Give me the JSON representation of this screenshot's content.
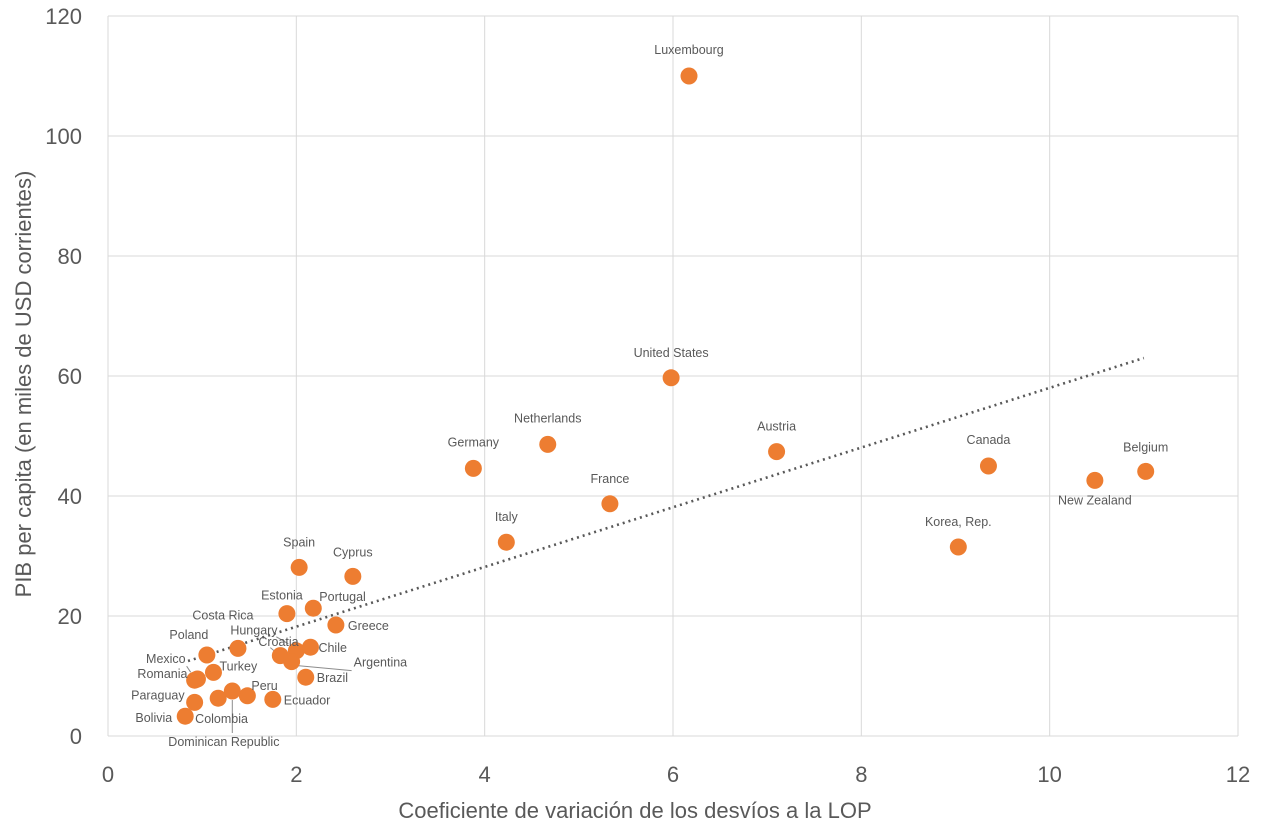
{
  "chart_data": {
    "type": "scatter",
    "title": "",
    "xlabel": "Coeficiente de variación de los desvíos a la LOP",
    "ylabel": "PIB per capita (en miles de USD corrientes)",
    "xlim": [
      0,
      12
    ],
    "ylim": [
      0,
      120
    ],
    "x_ticks": [
      0,
      2,
      4,
      6,
      8,
      10,
      12
    ],
    "y_ticks": [
      0,
      20,
      40,
      60,
      80,
      100,
      120
    ],
    "grid": true,
    "legend": "none",
    "colors": {
      "points": "#ed7d31",
      "trendline": "#595959",
      "grid": "#d9d9d9",
      "text": "#595959"
    },
    "trendline": {
      "style": "dotted linear",
      "x": [
        0.85,
        11.0
      ],
      "y": [
        12.5,
        63.0
      ]
    },
    "points": [
      {
        "label": "Luxembourg",
        "x": 6.17,
        "y": 110.0
      },
      {
        "label": "United States",
        "x": 5.98,
        "y": 59.7
      },
      {
        "label": "Netherlands",
        "x": 4.67,
        "y": 48.6
      },
      {
        "label": "Germany",
        "x": 3.88,
        "y": 44.6
      },
      {
        "label": "Austria",
        "x": 7.1,
        "y": 47.4
      },
      {
        "label": "Canada",
        "x": 9.35,
        "y": 45.0
      },
      {
        "label": "Belgium",
        "x": 11.02,
        "y": 44.1
      },
      {
        "label": "New Zealand",
        "x": 10.48,
        "y": 42.6
      },
      {
        "label": "France",
        "x": 5.33,
        "y": 38.7
      },
      {
        "label": "Italy",
        "x": 4.23,
        "y": 32.3
      },
      {
        "label": "Korea, Rep.",
        "x": 9.03,
        "y": 31.5
      },
      {
        "label": "Spain",
        "x": 2.03,
        "y": 28.1
      },
      {
        "label": "Cyprus",
        "x": 2.6,
        "y": 26.6
      },
      {
        "label": "Portugal",
        "x": 2.18,
        "y": 21.3
      },
      {
        "label": "Estonia",
        "x": 1.9,
        "y": 20.4
      },
      {
        "label": "Greece",
        "x": 2.42,
        "y": 18.5
      },
      {
        "label": "Costa Rica",
        "x": 1.38,
        "y": 14.6
      },
      {
        "label": "Hungary",
        "x": 1.83,
        "y": 13.4
      },
      {
        "label": "Croatia",
        "x": 2.0,
        "y": 14.2
      },
      {
        "label": "Chile",
        "x": 2.15,
        "y": 14.8
      },
      {
        "label": "Argentina",
        "x": 1.95,
        "y": 12.4
      },
      {
        "label": "Poland",
        "x": 1.05,
        "y": 13.5
      },
      {
        "label": "Mexico",
        "x": 0.92,
        "y": 9.3
      },
      {
        "label": "Turkey",
        "x": 1.12,
        "y": 10.6
      },
      {
        "label": "Romania",
        "x": 0.95,
        "y": 9.5
      },
      {
        "label": "Brazil",
        "x": 2.1,
        "y": 9.8
      },
      {
        "label": "Peru",
        "x": 1.48,
        "y": 6.7
      },
      {
        "label": "Ecuador",
        "x": 1.75,
        "y": 6.1
      },
      {
        "label": "Paraguay",
        "x": 0.92,
        "y": 5.6
      },
      {
        "label": "Colombia",
        "x": 1.17,
        "y": 6.3
      },
      {
        "label": "Dominican Republic",
        "x": 1.32,
        "y": 7.5
      },
      {
        "label": "Bolivia",
        "x": 0.82,
        "y": 3.3
      }
    ]
  }
}
